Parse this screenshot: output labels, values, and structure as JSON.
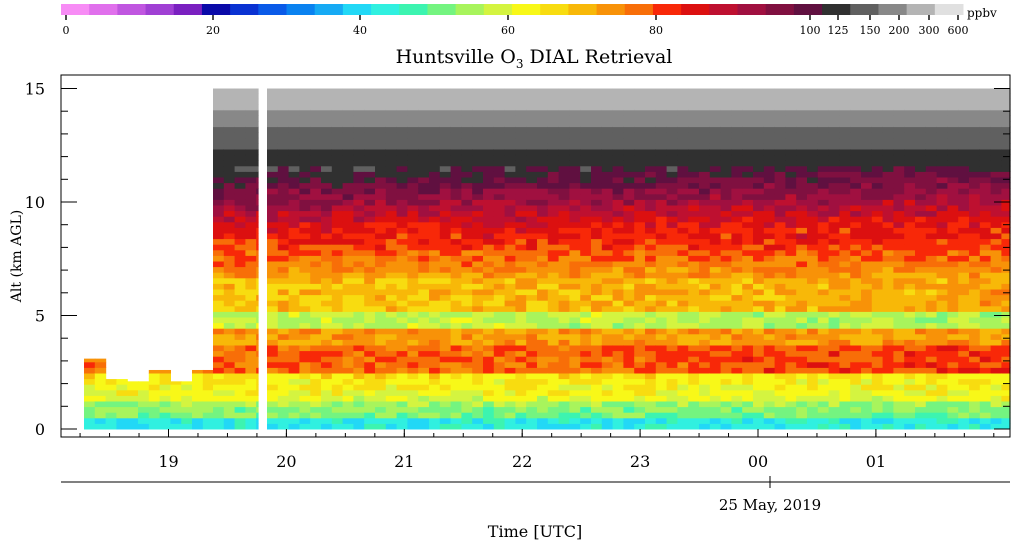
{
  "chart_data": {
    "type": "heatmap",
    "title_main": "Huntsville O",
    "title_sub": "3",
    "title_rest": " DIAL Retrieval",
    "xlabel": "Time [UTC]",
    "ylabel": "Alt (km AGL)",
    "date_label": "25 May, 2019",
    "colorbar_unit": "ppbv",
    "colorbar_ticks": [
      "0",
      "20",
      "40",
      "60",
      "80",
      "100",
      "125",
      "150",
      "200",
      "300",
      "600"
    ],
    "colorbar_colors": [
      "#f78cf5",
      "#e070ec",
      "#c056e0",
      "#a040d4",
      "#7a20c0",
      "#0a0aa8",
      "#0a32d2",
      "#0a5ae8",
      "#0a82f0",
      "#16aaf4",
      "#22d8f6",
      "#30f0e0",
      "#3cf4b0",
      "#74f480",
      "#a8f45c",
      "#d4f440",
      "#f8f818",
      "#f8dc10",
      "#f8b808",
      "#f89208",
      "#f86e08",
      "#f82808",
      "#dc1010",
      "#be1030",
      "#a01040",
      "#801040",
      "#601040",
      "#303030",
      "#606060",
      "#888888",
      "#b4b4b4",
      "#e0e0e0"
    ],
    "x_ticks": [
      "19",
      "20",
      "21",
      "22",
      "23",
      "00",
      "01"
    ],
    "y_ticks": [
      "0",
      "5",
      "10",
      "15"
    ],
    "ylim": [
      0,
      15
    ]
  }
}
